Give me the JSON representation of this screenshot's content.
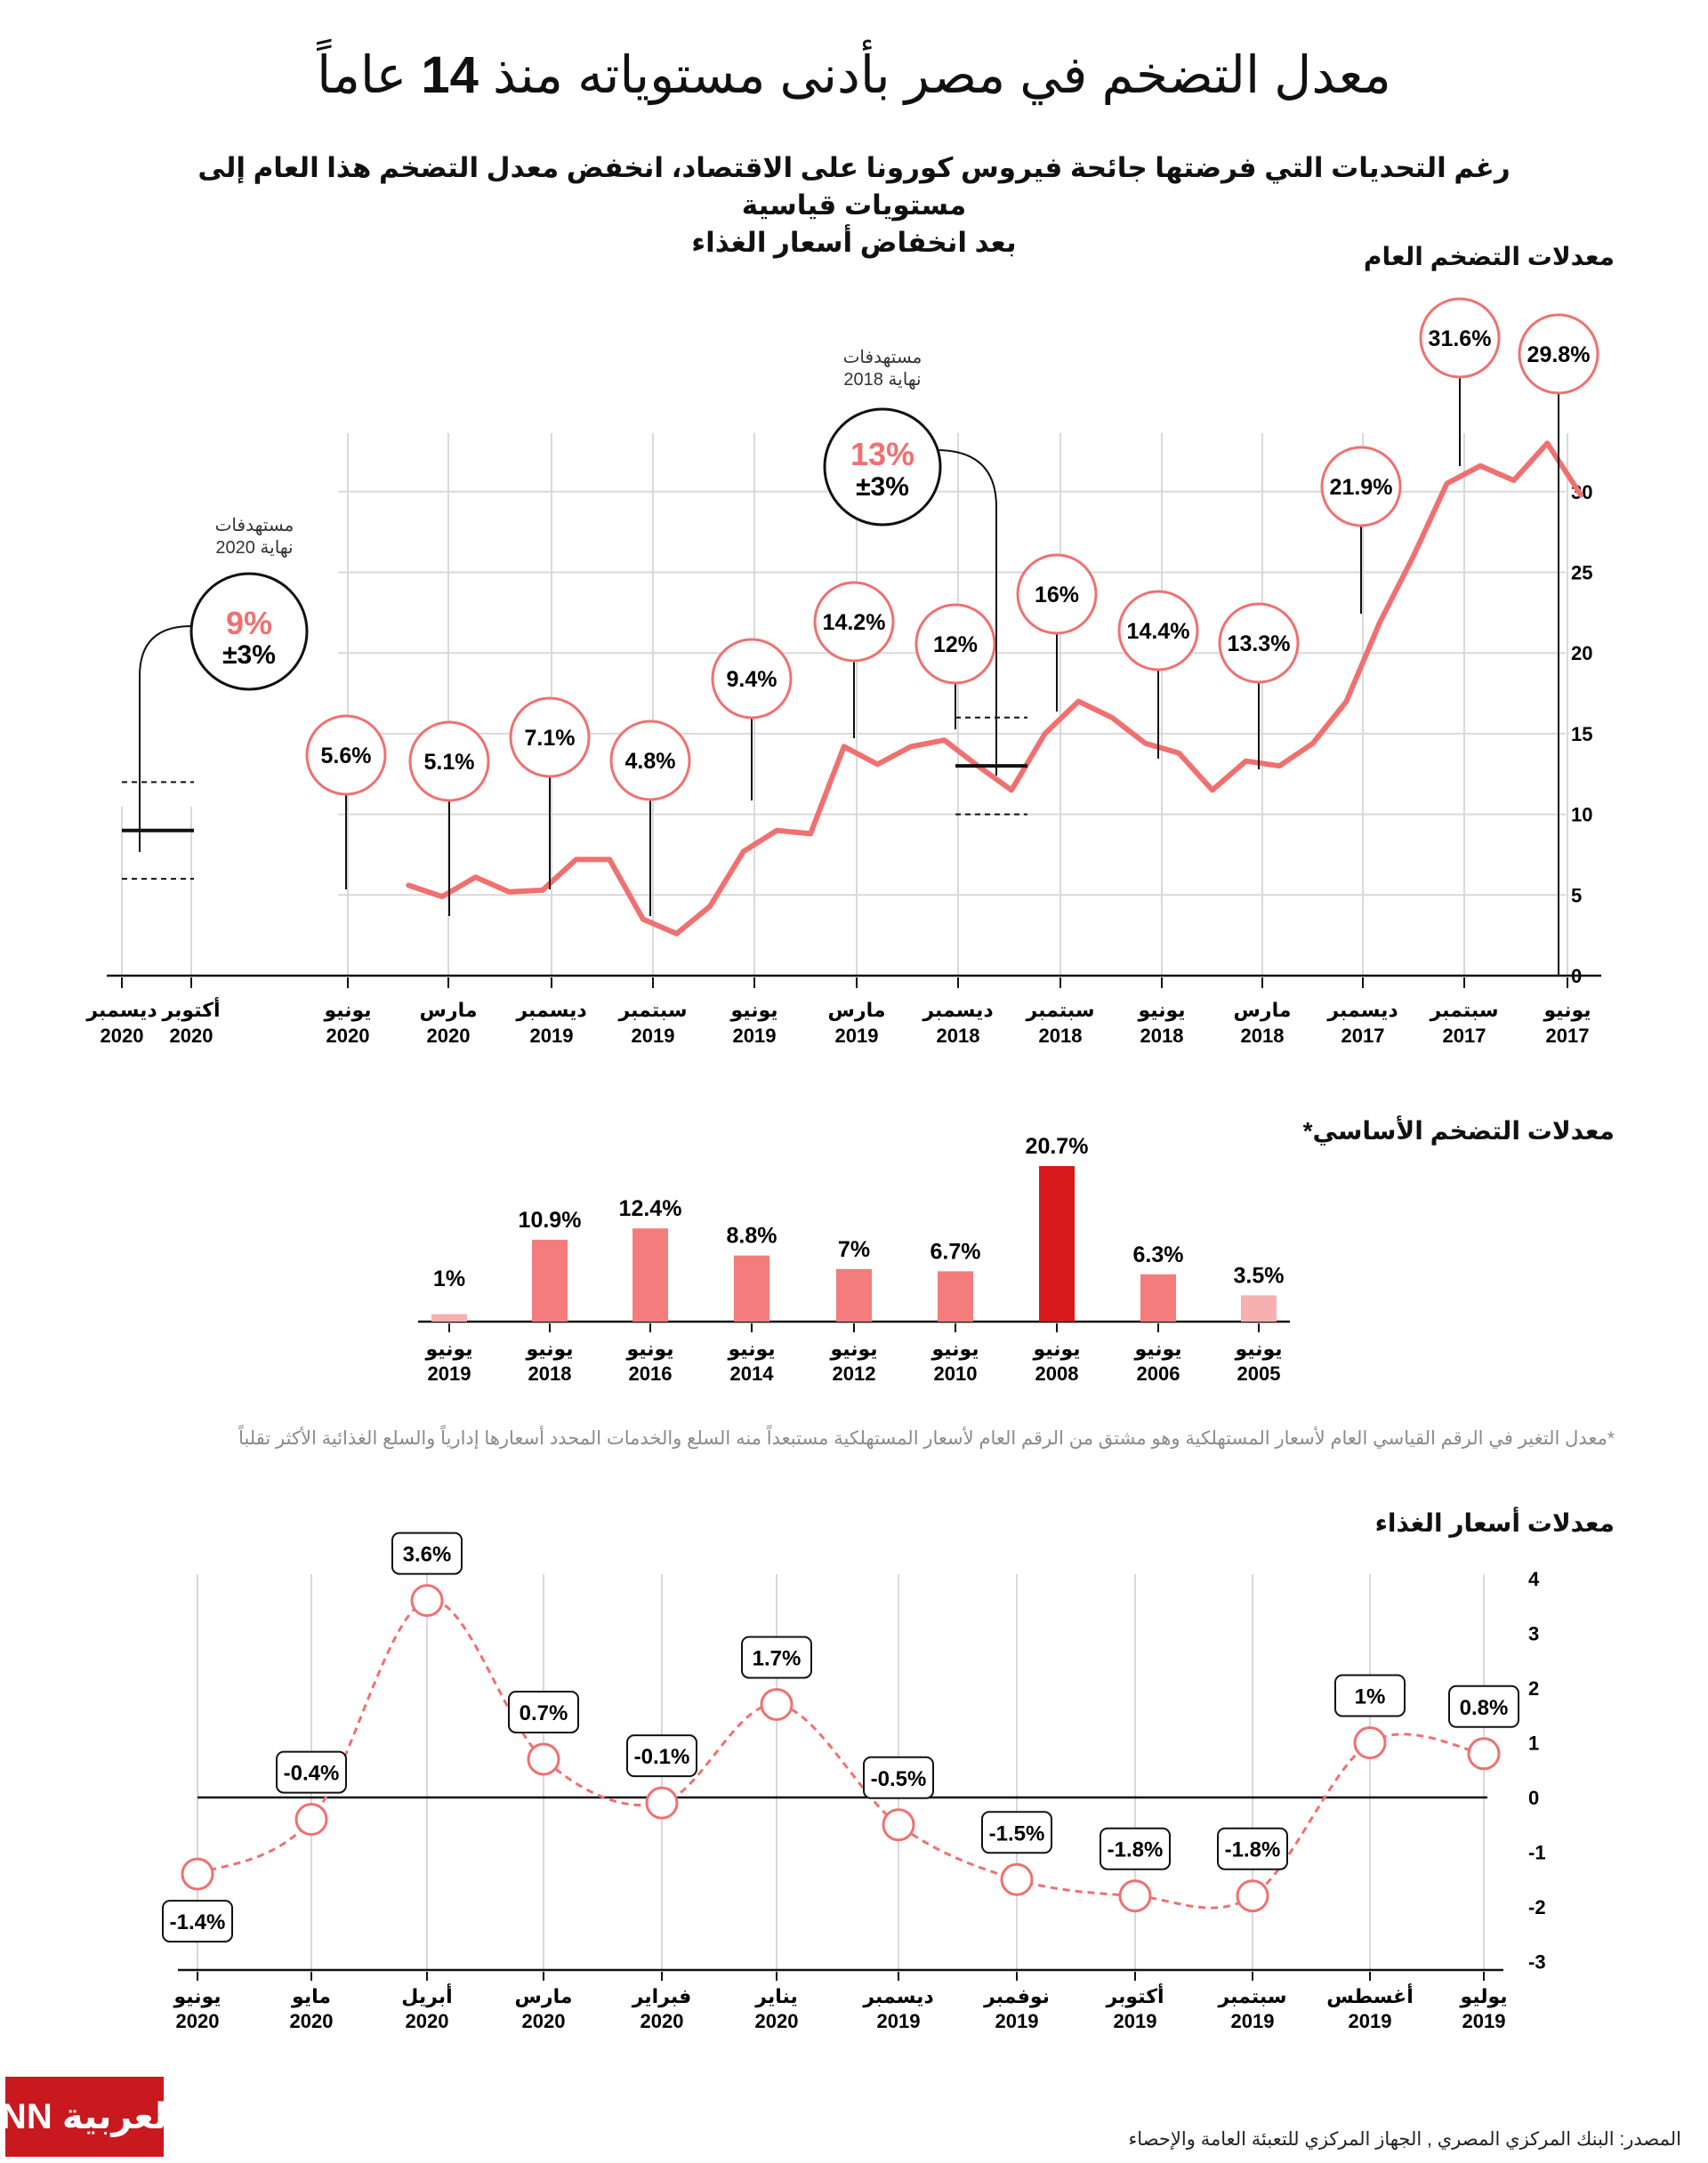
{
  "header": {
    "title_pre": "معدل التضخم في مصر بأدنى مستوياته منذ",
    "title_num": "14",
    "title_post": "عاماً",
    "subtitle_line1": "رغم التحديات التي فرضتها جائحة فيروس كورونا على الاقتصاد، انخفض معدل التضخم هذا العام إلى مستويات قياسية",
    "subtitle_line2": "بعد انخفاض أسعار الغذاء"
  },
  "sections": {
    "headline_title": "معدلات التضخم العام",
    "core_title": "معدلات التضخم الأساسي*",
    "food_title": "معدلات أسعار الغذاء"
  },
  "footnote": "*معدل التغير في الرقم القياسي العام لأسعار المستهلكية وهو مشتق من الرقم العام لأسعار المستهلكية مستبعداً منه السلع والخدمات المحدد أسعارها إدارياً والسلع الغذائية الأكثر تقلباً",
  "source": "المصدر: البنك المركزي المصري , الجهاز المركزي للتعبئة العامة والإحصاء",
  "logo_text": "CNN بالعربية",
  "colors": {
    "accent": "#f07070",
    "dark_red": "#d7191c",
    "bar": "#f47c7c",
    "bar_light": "#f7b0b0",
    "text": "#111111",
    "grid": "#d9d9d9"
  },
  "chart_data": [
    {
      "id": "headline",
      "type": "line",
      "title": "معدلات التضخم العام",
      "ylim": [
        0,
        35
      ],
      "yticks": [
        0,
        5,
        10,
        15,
        20,
        25,
        30
      ],
      "grid": true,
      "series": [
        {
          "values": [
            29.8,
            33.0,
            30.7,
            31.6,
            30.5,
            26.0,
            21.9,
            17.0,
            14.4,
            13.0,
            13.3,
            11.5,
            13.8,
            14.4,
            16.0,
            17.0,
            15.0,
            11.5,
            13.0,
            14.6,
            14.2,
            13.1,
            14.2,
            8.8,
            9.0,
            7.7,
            4.3,
            2.6,
            3.5,
            7.2,
            7.2,
            5.3,
            5.2,
            6.1,
            4.9,
            5.6
          ]
        }
      ],
      "x_axis_labels": [
        {
          "month": "يونيو",
          "year": "2017"
        },
        {
          "month": "سبتمبر",
          "year": "2017"
        },
        {
          "month": "ديسمبر",
          "year": "2017"
        },
        {
          "month": "مارس",
          "year": "2018"
        },
        {
          "month": "يونيو",
          "year": "2018"
        },
        {
          "month": "سبتمبر",
          "year": "2018"
        },
        {
          "month": "ديسمبر",
          "year": "2018"
        },
        {
          "month": "مارس",
          "year": "2019"
        },
        {
          "month": "يونيو",
          "year": "2019"
        },
        {
          "month": "سبتمبر",
          "year": "2019"
        },
        {
          "month": "ديسمبر",
          "year": "2019"
        },
        {
          "month": "مارس",
          "year": "2020"
        },
        {
          "month": "يونيو",
          "year": "2020"
        },
        {
          "month": "أكتوبر",
          "year": "2020"
        },
        {
          "month": "ديسمبر",
          "year": "2020"
        }
      ],
      "annotations": [
        {
          "label": "29.8%",
          "value": 29.8
        },
        {
          "label": "31.6%",
          "value": 31.6
        },
        {
          "label": "21.9%",
          "value": 21.9
        },
        {
          "label": "13.3%",
          "value": 13.3
        },
        {
          "label": "14.4%",
          "value": 14.4
        },
        {
          "label": "16%",
          "value": 16
        },
        {
          "label": "12%",
          "value": 12
        },
        {
          "label": "14.2%",
          "value": 14.2
        },
        {
          "label": "9.4%",
          "value": 9.4
        },
        {
          "label": "4.8%",
          "value": 4.8
        },
        {
          "label": "7.1%",
          "value": 7.1
        },
        {
          "label": "5.1%",
          "value": 5.1
        },
        {
          "label": "5.6%",
          "value": 5.6
        }
      ],
      "targets": [
        {
          "caption_line1": "مستهدفات",
          "caption_line2": "نهاية 2018",
          "value_label": "13%",
          "band_label": "±3%",
          "center": 13,
          "low": 10,
          "high": 16
        },
        {
          "caption_line1": "مستهدفات",
          "caption_line2": "نهاية 2020",
          "value_label": "9%",
          "band_label": "±3%",
          "center": 9,
          "low": 6,
          "high": 12
        }
      ]
    },
    {
      "id": "core",
      "type": "bar",
      "title": "معدلات التضخم الأساسي*",
      "categories": [
        {
          "month": "يونيو",
          "year": "2019"
        },
        {
          "month": "يونيو",
          "year": "2018"
        },
        {
          "month": "يونيو",
          "year": "2016"
        },
        {
          "month": "يونيو",
          "year": "2014"
        },
        {
          "month": "يونيو",
          "year": "2012"
        },
        {
          "month": "يونيو",
          "year": "2010"
        },
        {
          "month": "يونيو",
          "year": "2008"
        },
        {
          "month": "يونيو",
          "year": "2006"
        },
        {
          "month": "يونيو",
          "year": "2005"
        }
      ],
      "values": [
        1,
        10.9,
        12.4,
        8.8,
        7,
        6.7,
        20.7,
        6.3,
        3.5
      ],
      "value_labels": [
        "1%",
        "10.9%",
        "12.4%",
        "8.8%",
        "7%",
        "6.7%",
        "20.7%",
        "6.3%",
        "3.5%"
      ],
      "highlight_index": 6
    },
    {
      "id": "food",
      "type": "line",
      "title": "معدلات أسعار الغذاء",
      "ylim": [
        -3,
        4
      ],
      "yticks": [
        -3,
        -2,
        -1,
        0,
        1,
        2,
        3,
        4
      ],
      "categories": [
        {
          "month": "يونيو",
          "year": "2020"
        },
        {
          "month": "مايو",
          "year": "2020"
        },
        {
          "month": "أبريل",
          "year": "2020"
        },
        {
          "month": "مارس",
          "year": "2020"
        },
        {
          "month": "فبراير",
          "year": "2020"
        },
        {
          "month": "يناير",
          "year": "2020"
        },
        {
          "month": "ديسمبر",
          "year": "2019"
        },
        {
          "month": "نوفمبر",
          "year": "2019"
        },
        {
          "month": "أكتوبر",
          "year": "2019"
        },
        {
          "month": "سبتمبر",
          "year": "2019"
        },
        {
          "month": "أغسطس",
          "year": "2019"
        },
        {
          "month": "يوليو",
          "year": "2019"
        }
      ],
      "values": [
        -1.4,
        -0.4,
        3.6,
        0.7,
        -0.1,
        1.7,
        -0.5,
        -1.5,
        -1.8,
        -1.8,
        1,
        0.8
      ],
      "value_labels": [
        "-1.4%",
        "-0.4%",
        "3.6%",
        "0.7%",
        "-0.1%",
        "1.7%",
        "-0.5%",
        "-1.5%",
        "-1.8%",
        "-1.8%",
        "1%",
        "0.8%"
      ]
    }
  ]
}
